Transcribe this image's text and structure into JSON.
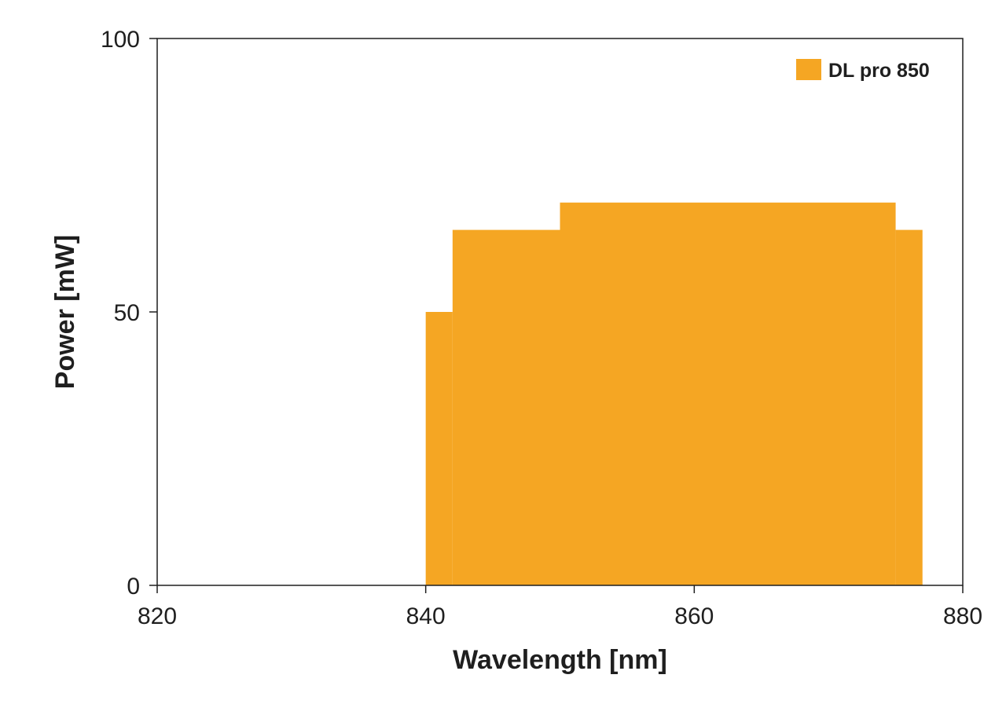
{
  "chart_data": {
    "type": "area",
    "title": "",
    "xlabel": "Wavelength [nm]",
    "ylabel": "Power [mW]",
    "xlim": [
      820,
      880
    ],
    "ylim": [
      0,
      100
    ],
    "x_ticks": [
      "820",
      "840",
      "860",
      "880"
    ],
    "y_ticks": [
      "0",
      "50",
      "100"
    ],
    "grid": false,
    "legend_position": "top-right",
    "colors": {
      "series": "#F5A623",
      "axis": "#1f1f1f",
      "background": "#ffffff"
    },
    "series": [
      {
        "name": "DL pro 850",
        "step_profile": [
          {
            "x_start": 840,
            "x_end": 842,
            "y": 50
          },
          {
            "x_start": 842,
            "x_end": 850,
            "y": 65
          },
          {
            "x_start": 850,
            "x_end": 875,
            "y": 70
          },
          {
            "x_start": 875,
            "x_end": 877,
            "y": 65
          }
        ]
      }
    ]
  }
}
